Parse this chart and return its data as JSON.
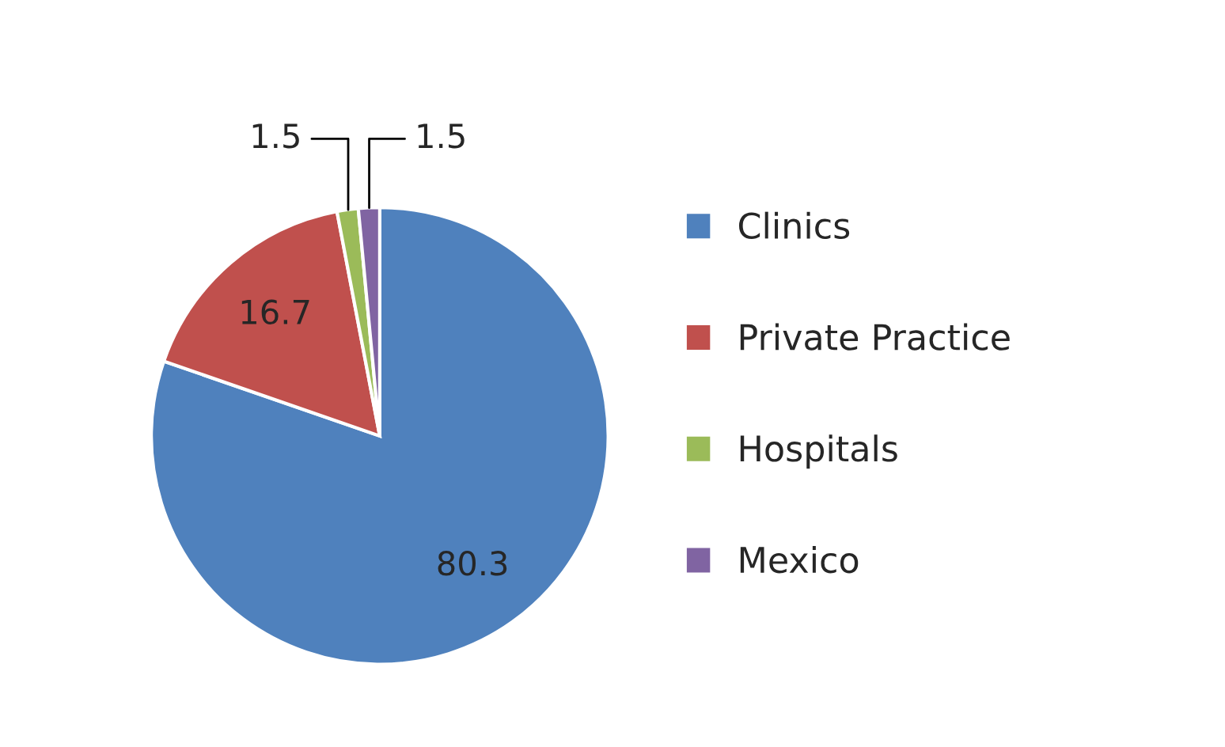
{
  "chart_data": {
    "type": "pie",
    "categories": [
      "Clinics",
      "Private Practice",
      "Hospitals",
      "Mexico"
    ],
    "values": [
      80.3,
      16.7,
      1.5,
      1.5
    ],
    "colors": [
      "#4f81bd",
      "#c0504d",
      "#9bbb59",
      "#8064a2"
    ],
    "data_labels": true,
    "legend": "right"
  }
}
